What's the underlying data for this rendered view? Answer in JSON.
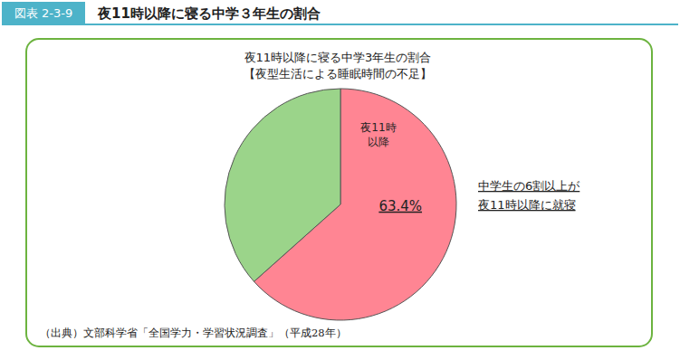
{
  "figure_label": "図表 2-3-9",
  "heading": "夜11時以降に寝る中学３年生の割合",
  "chart_data": {
    "type": "pie",
    "title": "夜11時以降に寝る中学3年生の割合",
    "subtitle": "【夜型生活による睡眠時間の不足】",
    "categories": [
      "夜11時\n以降",
      null
    ],
    "values": [
      63.4,
      36.6
    ],
    "value_labels": [
      "63.4%",
      null
    ],
    "data_labels": true,
    "colors": [
      "#ff8593",
      "#9bd48a"
    ],
    "annotation": "中学生の6割以上が\n夜11時以降に就寝",
    "source": "（出典）文部科学省「全国学力・学習状況調査」（平成28年）"
  }
}
